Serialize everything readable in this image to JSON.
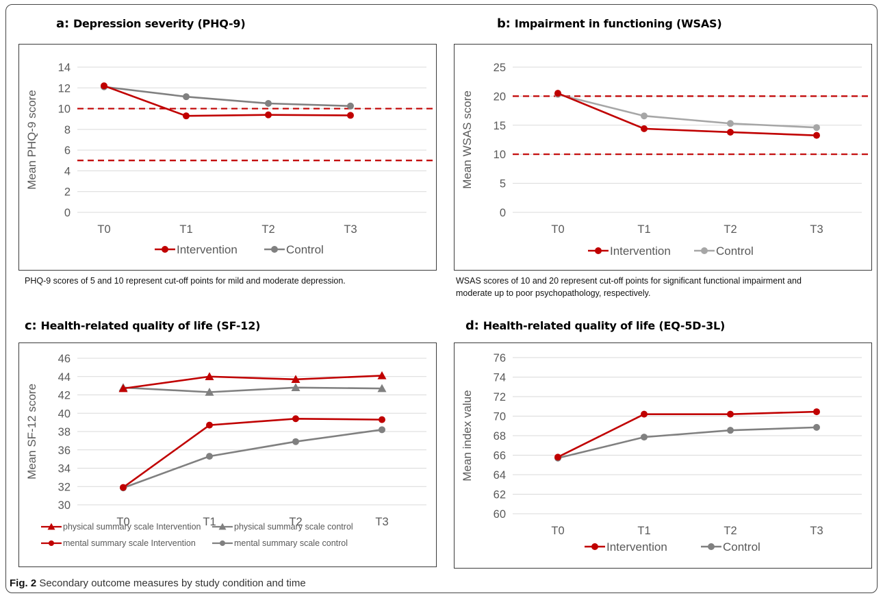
{
  "panels": {
    "a": {
      "letter": "a:",
      "title": "Depression severity (PHQ-9)",
      "note": "PHQ-9 scores of 5 and 10 represent cut-off points for mild and  moderate depression."
    },
    "b": {
      "letter": "b:",
      "title": "Impairment in functioning (WSAS)",
      "note_line1": "WSAS scores of 10 and 20 represent cut-off points for significant functional impairment and",
      "note_line2": "moderate up to poor psychopathology, respectively."
    },
    "c": {
      "letter": "c:",
      "title": "Health-related quality of life (SF-12)"
    },
    "d": {
      "letter": "d:",
      "title": "Health-related quality of life (EQ-5D-3L)"
    }
  },
  "caption": {
    "label": "Fig. 2",
    "text": " Secondary outcome measures by study condition and time"
  },
  "colors": {
    "intervention": "#c00000",
    "control": "#808080",
    "control_light": "#a6a6a6",
    "cutoff": "#c00000",
    "grid": "#d9d9d9"
  },
  "chart_data": [
    {
      "id": "a",
      "type": "line",
      "categories": [
        "T0",
        "T1",
        "T2",
        "T3"
      ],
      "ylabel": "Mean PHQ-9 score",
      "ylim": [
        0,
        14
      ],
      "yticks": [
        0,
        2,
        4,
        6,
        8,
        10,
        12,
        14
      ],
      "series": [
        {
          "name": "Intervention",
          "values": [
            12.2,
            9.3,
            9.4,
            9.35
          ],
          "color": "#c00000",
          "marker": "circle"
        },
        {
          "name": "Control",
          "values": [
            12.1,
            11.15,
            10.5,
            10.25
          ],
          "color": "#808080",
          "marker": "circle"
        }
      ],
      "cutoffs": [
        10,
        5
      ],
      "legend": "bottom"
    },
    {
      "id": "b",
      "type": "line",
      "categories": [
        "T0",
        "T1",
        "T2",
        "T3"
      ],
      "ylabel": "Mean WSAS score",
      "ylim": [
        0,
        25
      ],
      "yticks": [
        0,
        5,
        10,
        15,
        20,
        25
      ],
      "series": [
        {
          "name": "Intervention",
          "values": [
            20.5,
            14.4,
            13.8,
            13.25
          ],
          "color": "#c00000",
          "marker": "circle"
        },
        {
          "name": "Control",
          "values": [
            20.3,
            16.6,
            15.3,
            14.6
          ],
          "color": "#a6a6a6",
          "marker": "circle"
        }
      ],
      "cutoffs": [
        20,
        10
      ],
      "legend": "bottom"
    },
    {
      "id": "c",
      "type": "line",
      "categories": [
        "T0",
        "T1",
        "T2",
        "T3"
      ],
      "ylabel": "Mean SF-12 score",
      "ylim": [
        30,
        46
      ],
      "yticks": [
        30,
        32,
        34,
        36,
        38,
        40,
        42,
        44,
        46
      ],
      "series": [
        {
          "name": "physical summary scale Intervention",
          "values": [
            42.7,
            44.0,
            43.7,
            44.1
          ],
          "color": "#c00000",
          "marker": "triangle"
        },
        {
          "name": "physical summary scale control",
          "values": [
            42.8,
            42.3,
            42.8,
            42.7
          ],
          "color": "#808080",
          "marker": "triangle"
        },
        {
          "name": "mental summary scale Intervention",
          "values": [
            31.9,
            38.7,
            39.4,
            39.3
          ],
          "color": "#c00000",
          "marker": "circle"
        },
        {
          "name": "mental summary scale control",
          "values": [
            31.85,
            35.3,
            36.9,
            38.2
          ],
          "color": "#808080",
          "marker": "circle"
        }
      ],
      "cutoffs": [],
      "legend": "bottom-two-columns"
    },
    {
      "id": "d",
      "type": "line",
      "categories": [
        "T0",
        "T1",
        "T2",
        "T3"
      ],
      "ylabel": "Mean index value",
      "ylim": [
        60,
        76
      ],
      "yticks": [
        60,
        62,
        64,
        66,
        68,
        70,
        72,
        74,
        76
      ],
      "series": [
        {
          "name": "Intervention",
          "values": [
            65.8,
            70.2,
            70.2,
            70.45
          ],
          "color": "#c00000",
          "marker": "circle"
        },
        {
          "name": "Control",
          "values": [
            65.7,
            67.85,
            68.55,
            68.85
          ],
          "color": "#808080",
          "marker": "circle"
        }
      ],
      "cutoffs": [],
      "legend": "bottom"
    }
  ]
}
